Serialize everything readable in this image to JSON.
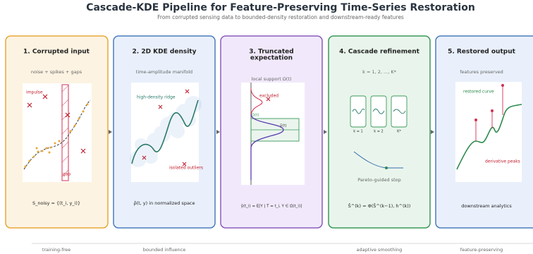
{
  "header": {
    "title": "Cascade-KDE Pipeline for Feature-Preserving Time-Series Restoration",
    "subtitle": "From corrupted sensing data to bounded-density restoration and downstream-ready features"
  },
  "panels": [
    {
      "title": "1. Corrupted input",
      "subtitle": "noise + spikes + gaps",
      "labels": [
        "impulse",
        "gap"
      ],
      "formula": "S_noisy = {(t_i, y_i)}"
    },
    {
      "title": "2. 2D KDE density",
      "subtitle": "time-amplitude manifold",
      "labels": [
        "high-density ridge",
        "isolated outliers"
      ],
      "formula": "ρ̂(t, y) in normalized space"
    },
    {
      "title": [
        "3. Truncated",
        "expectation"
      ],
      "subtitle": "local support Ω(t)",
      "labels": [
        "excluded",
        "Ω(t)",
        "ŷ(t)"
      ],
      "formula": "ŷ(t_i) = E[Y | T = t_i, Y ∈ Ω(t_i)]"
    },
    {
      "title": "4. Cascade refinement",
      "subtitle": "k = 1, 2, ..., K*",
      "labels": [
        "k = 1",
        "k = 2",
        "K*",
        "Pareto-guided stop"
      ],
      "formula": "Ŝ^(k) = Φ(Ŝ^(k−1), h^(k))"
    },
    {
      "title": "5. Restored output",
      "subtitle": "features preserved",
      "labels": [
        "restored curve",
        "derivative peaks"
      ],
      "formula": "downstream analytics"
    }
  ],
  "footer": [
    "training-free",
    "bounded influence",
    "adaptive smoothing",
    "feature-preserving"
  ]
}
